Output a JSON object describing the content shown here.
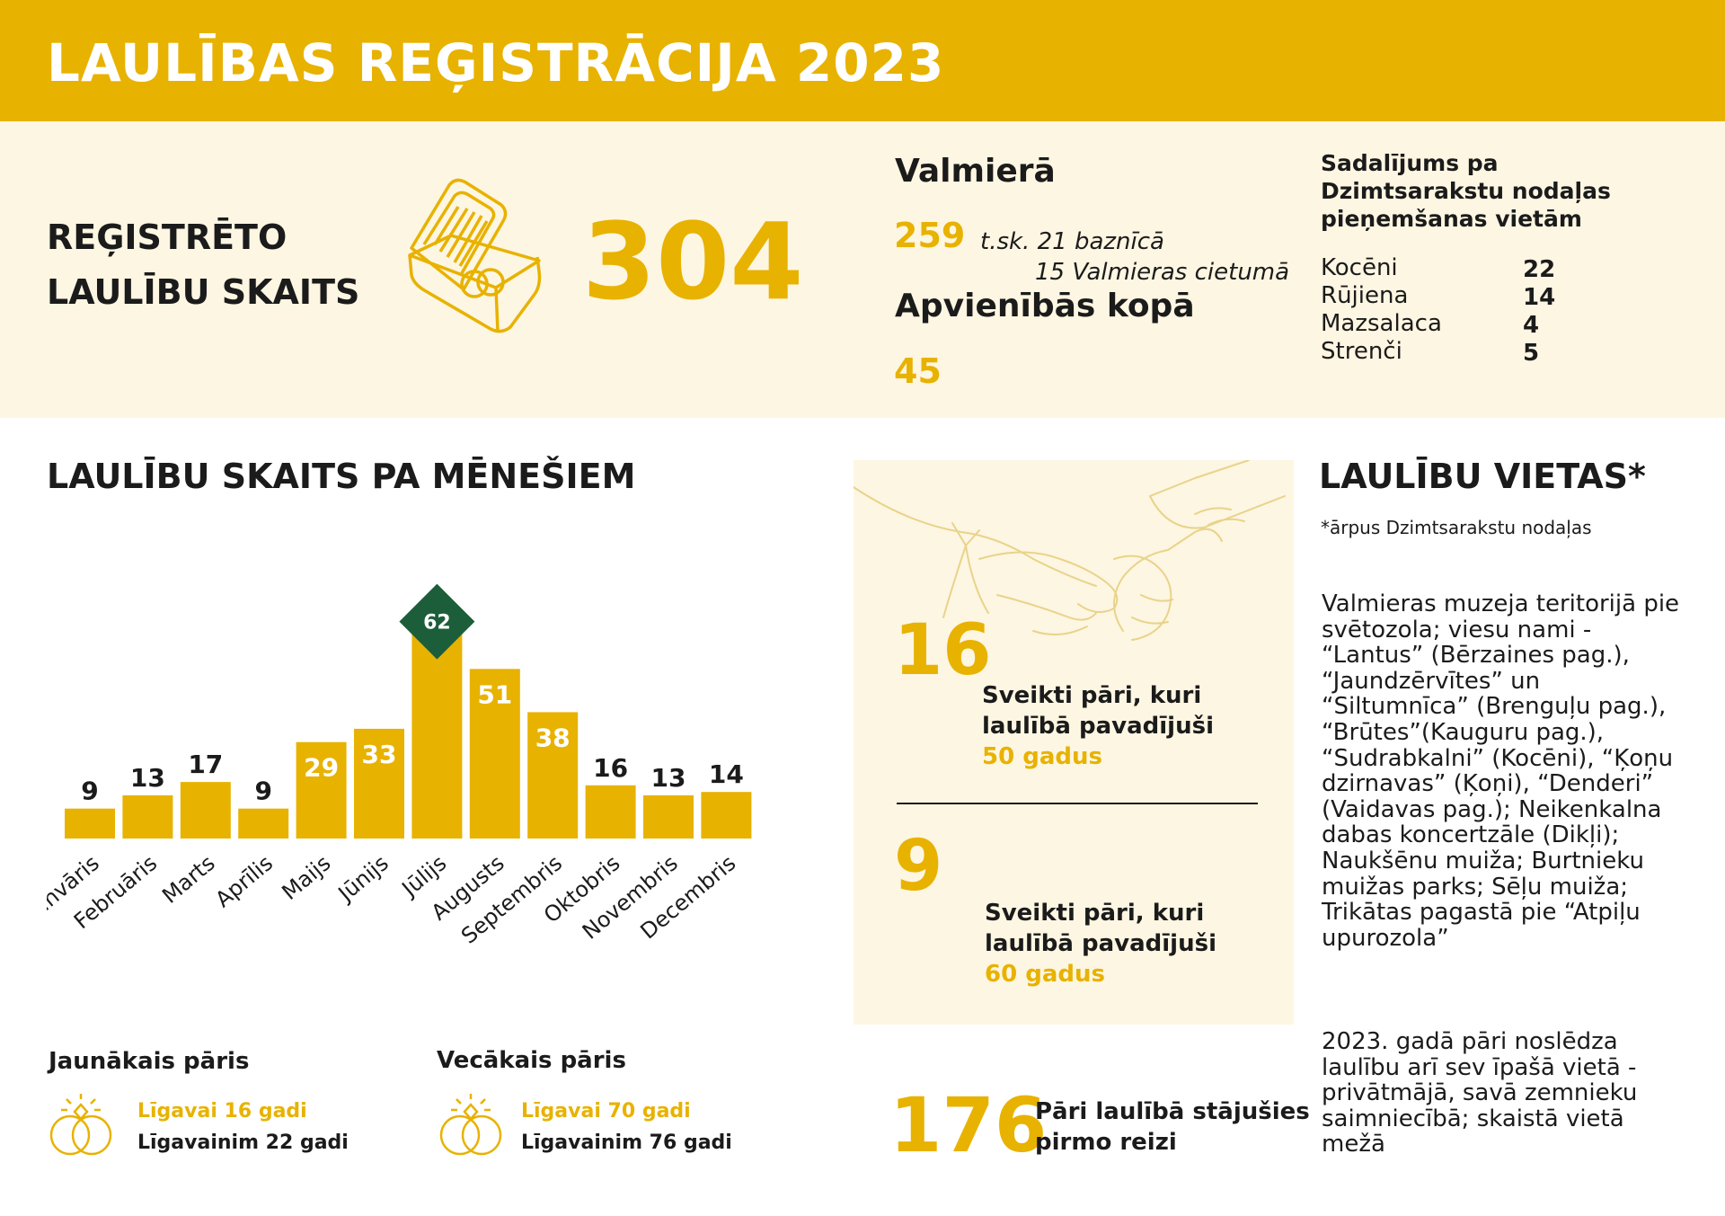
{
  "header": {
    "title": "LAULĪBAS REĢISTRĀCIJA 2023"
  },
  "registered": {
    "label_line1": "REĢISTRĒTO",
    "label_line2": "LAULĪBU SKAITS",
    "total": "304"
  },
  "valmiera": {
    "title": "Valmierā",
    "count": "259",
    "note_line1": "t.sk. 21 baznīcā",
    "note_line2": "15 Valmieras cietumā"
  },
  "apvieniba": {
    "title": "Apvienībās kopā",
    "count": "45"
  },
  "breakdown": {
    "title_line1": "Sadalījums pa",
    "title_line2": "Dzimtsarakstu nodaļas",
    "title_line3": "pieņemšanas vietām",
    "items": [
      {
        "name": "Kocēni",
        "value": "22"
      },
      {
        "name": "Rūjiena",
        "value": "14"
      },
      {
        "name": "Mazsalaca",
        "value": "4"
      },
      {
        "name": "Strenči",
        "value": "5"
      }
    ]
  },
  "monthly": {
    "title": "LAULĪBU SKAITS PA MĒNEŠIEM"
  },
  "chart_data": {
    "type": "bar",
    "categories": [
      "Janvāris",
      "Februāris",
      "Marts",
      "Aprīlis",
      "Maijs",
      "Jūnijs",
      "Jūlijs",
      "Augusts",
      "Septembris",
      "Oktobris",
      "Novembris",
      "Decembris"
    ],
    "values": [
      9,
      13,
      17,
      9,
      29,
      33,
      62,
      51,
      38,
      16,
      13,
      14
    ],
    "highlight": {
      "category": "Jūlijs",
      "value": 62
    },
    "colors": {
      "bar": "#e8b200",
      "highlight_marker": "#1d5e3a",
      "label_inside": "#ffffff",
      "label_outside": "#1b1b1b"
    }
  },
  "anniversaries": [
    {
      "count": "16",
      "line1": "Sveikti pāri, kuri",
      "line2": "laulībā pavadījuši",
      "years": "50 gadus"
    },
    {
      "count": "9",
      "line1": "Sveikti pāri, kuri",
      "line2": "laulībā pavadījuši",
      "years": "60 gadus"
    }
  ],
  "first_time": {
    "count": "176",
    "line1": "Pāri laulībā stājušies",
    "line2": "pirmo reizi"
  },
  "places": {
    "title": "LAULĪBU VIETAS*",
    "footnote": "*ārpus Dzimtsarakstu nodaļas",
    "text": "Valmieras muzeja teritorijā pie svētozola; viesu nami - “Lantus” (Bērzaines pag.), “Jaundzērvītes” un “Siltumnīca” (Brenguļu pag.), “Brūtes”(Kauguru pag.), “Sudrabkalni” (Kocēni), “Ķoņu dzirnavas” (Ķoņi), “Denderi” (Vaidavas pag.); Neikenkalna dabas koncertzāle (Dikļi); Naukšēnu muiža; Burtnieku muižas parks; Sēļu muiža; Trikātas pagastā pie “Atpiļu upurozola”",
    "text2": "2023. gadā pāri noslēdza laulību arī sev īpašā vietā - privātmājā, savā zemnieku saimniecībā; skaistā vietā mežā"
  },
  "youngest": {
    "title": "Jaunākais pāris",
    "bride": "Līgavai 16 gadi",
    "groom": "Līgavainim 22 gadi"
  },
  "oldest": {
    "title": "Vecākais pāris",
    "bride": "Līgavai 70 gadi",
    "groom": "Līgavainim 76 gadi"
  }
}
